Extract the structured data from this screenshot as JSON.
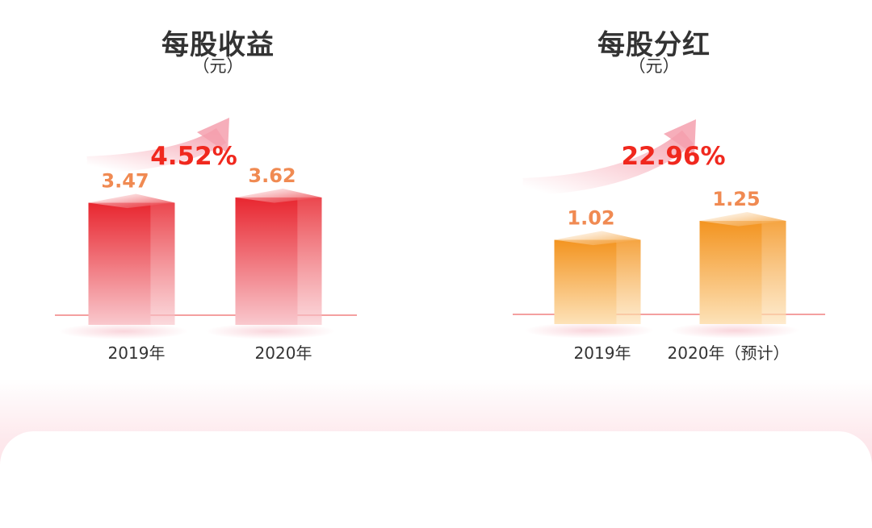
{
  "chart_data": [
    {
      "type": "bar",
      "title": "每股收益",
      "subtitle": "（元）",
      "categories": [
        "2019年",
        "2020年"
      ],
      "values": [
        3.47,
        3.62
      ],
      "value_labels": [
        "3.47",
        "3.62"
      ],
      "growth_label": "4.52%",
      "growth_value": 4.52,
      "ylim": [
        0,
        3.62
      ],
      "grid": false,
      "colors": {
        "bar_top": "#e8262f",
        "bar_bottom": "#f9c8cd",
        "label": "#f08a52",
        "growth": "#f0281e",
        "baseline": "#f08080"
      }
    },
    {
      "type": "bar",
      "title": "每股分红",
      "subtitle": "（元）",
      "categories": [
        "2019年",
        "2020年（预计）"
      ],
      "values": [
        1.02,
        1.25
      ],
      "value_labels": [
        "1.02",
        "1.25"
      ],
      "growth_label": "22.96%",
      "growth_value": 22.96,
      "ylim": [
        0,
        1.25
      ],
      "grid": false,
      "colors": {
        "bar_top": "#f39420",
        "bar_bottom": "#fde2b8",
        "label": "#f08a52",
        "growth": "#f0281e",
        "baseline": "#f08080"
      }
    }
  ]
}
